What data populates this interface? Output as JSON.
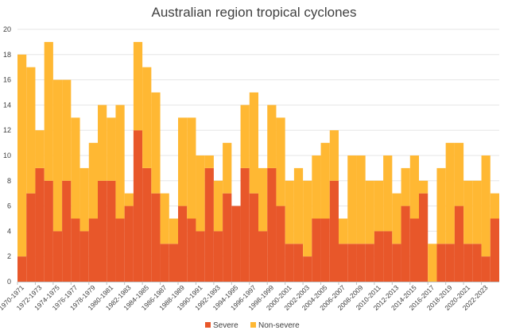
{
  "chart_data": {
    "type": "bar",
    "stacked": true,
    "title": "Australian region tropical cyclones",
    "xlabel": "",
    "ylabel": "",
    "ylim": [
      0,
      20
    ],
    "yticks": [
      0,
      2,
      4,
      6,
      8,
      10,
      12,
      14,
      16,
      18,
      20
    ],
    "grid": true,
    "legend_position": "bottom-center",
    "categories": [
      "1970-1971",
      "1971-1972",
      "1972-1973",
      "1973-1974",
      "1974-1975",
      "1975-1976",
      "1976-1977",
      "1977-1978",
      "1978-1979",
      "1979-1980",
      "1980-1981",
      "1981-1982",
      "1982-1983",
      "1983-1984",
      "1984-1985",
      "1985-1986",
      "1986-1987",
      "1987-1988",
      "1988-1989",
      "1989-1990",
      "1990-1991",
      "1991-1992",
      "1992-1993",
      "1993-1994",
      "1994-1995",
      "1995-1996",
      "1996-1997",
      "1997-1998",
      "1998-1999",
      "1999-2000",
      "2000-2001",
      "2001-2002",
      "2002-2003",
      "2003-2004",
      "2004-2005",
      "2005-2006",
      "2006-2007",
      "2007-2008",
      "2008-2009",
      "2009-2010",
      "2010-2011",
      "2011-2012",
      "2012-2013",
      "2013-2014",
      "2014-2015",
      "2015-2016",
      "2016-2017",
      "2017-2018",
      "2018-2019",
      "2019-2020",
      "2020-2021",
      "2021-2022",
      "2022-2023",
      "2023-2024"
    ],
    "tick_labels_shown": [
      "1970-1971",
      "1972-1973",
      "1974-1975",
      "1976-1977",
      "1978-1979",
      "1980-1981",
      "1982-1983",
      "1984-1985",
      "1986-1987",
      "1988-1989",
      "1990-1991",
      "1992-1993",
      "1994-1995",
      "1996-1997",
      "1998-1999",
      "2000-2001",
      "2002-2003",
      "2004-2005",
      "2006-2007",
      "2008-2009",
      "2010-2011",
      "2012-2013",
      "2014-2015",
      "2016-2017",
      "2018-2019",
      "2020-2021",
      "2022-2023"
    ],
    "series": [
      {
        "name": "Severe",
        "color": "#E8572A",
        "values": [
          2,
          7,
          9,
          8,
          4,
          8,
          5,
          4,
          5,
          8,
          8,
          5,
          6,
          12,
          9,
          7,
          3,
          3,
          6,
          5,
          4,
          9,
          4,
          7,
          6,
          9,
          7,
          4,
          9,
          6,
          3,
          3,
          2,
          5,
          5,
          8,
          3,
          3,
          3,
          3,
          4,
          4,
          3,
          6,
          5,
          7,
          0,
          3,
          3,
          6,
          3,
          3,
          2,
          5
        ]
      },
      {
        "name": "Non-severe",
        "color": "#FFB833",
        "values": [
          16,
          10,
          3,
          11,
          12,
          8,
          8,
          5,
          6,
          6,
          5,
          9,
          1,
          7,
          8,
          8,
          4,
          2,
          7,
          8,
          6,
          1,
          4,
          4,
          0,
          5,
          8,
          5,
          5,
          7,
          5,
          6,
          6,
          5,
          6,
          4,
          2,
          7,
          7,
          5,
          4,
          6,
          4,
          3,
          5,
          1,
          3,
          6,
          8,
          5,
          5,
          5,
          8,
          2
        ]
      }
    ]
  }
}
